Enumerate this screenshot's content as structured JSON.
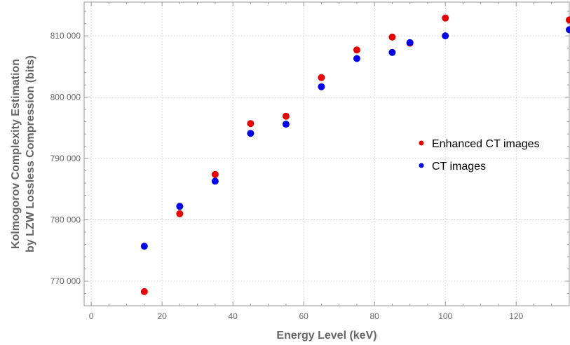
{
  "chart_data": {
    "type": "scatter",
    "title": "",
    "xlabel": "Energy Level (keV)",
    "ylabel_lines": [
      "Kolmogorov Complexity Estimation",
      "by LZW Lossless Compression (bits)"
    ],
    "xlim": [
      -2,
      135
    ],
    "ylim": [
      766000,
      815500
    ],
    "x_ticks": [
      0,
      20,
      40,
      60,
      80,
      100,
      120
    ],
    "y_ticks": [
      770000,
      780000,
      790000,
      800000,
      810000
    ],
    "y_tick_labels": [
      "770 000",
      "780 000",
      "790 000",
      "800 000",
      "810 000"
    ],
    "grid": true,
    "legend_position": "right",
    "series": [
      {
        "name": "Enhanced CT images",
        "color": "#e60000",
        "points": [
          {
            "x": 15,
            "y": 768300
          },
          {
            "x": 25,
            "y": 781000
          },
          {
            "x": 35,
            "y": 787400
          },
          {
            "x": 45,
            "y": 795700
          },
          {
            "x": 55,
            "y": 796900
          },
          {
            "x": 65,
            "y": 803200
          },
          {
            "x": 75,
            "y": 807700
          },
          {
            "x": 85,
            "y": 809800
          },
          {
            "x": 90,
            "y": 808800
          },
          {
            "x": 100,
            "y": 812900
          },
          {
            "x": 135,
            "y": 812600
          }
        ]
      },
      {
        "name": "CT images",
        "color": "#0000e6",
        "points": [
          {
            "x": 15,
            "y": 775700
          },
          {
            "x": 25,
            "y": 782200
          },
          {
            "x": 35,
            "y": 786300
          },
          {
            "x": 45,
            "y": 794100
          },
          {
            "x": 55,
            "y": 795600
          },
          {
            "x": 65,
            "y": 801700
          },
          {
            "x": 75,
            "y": 806300
          },
          {
            "x": 85,
            "y": 807300
          },
          {
            "x": 90,
            "y": 808900
          },
          {
            "x": 100,
            "y": 810000
          },
          {
            "x": 135,
            "y": 811000
          }
        ]
      }
    ]
  }
}
